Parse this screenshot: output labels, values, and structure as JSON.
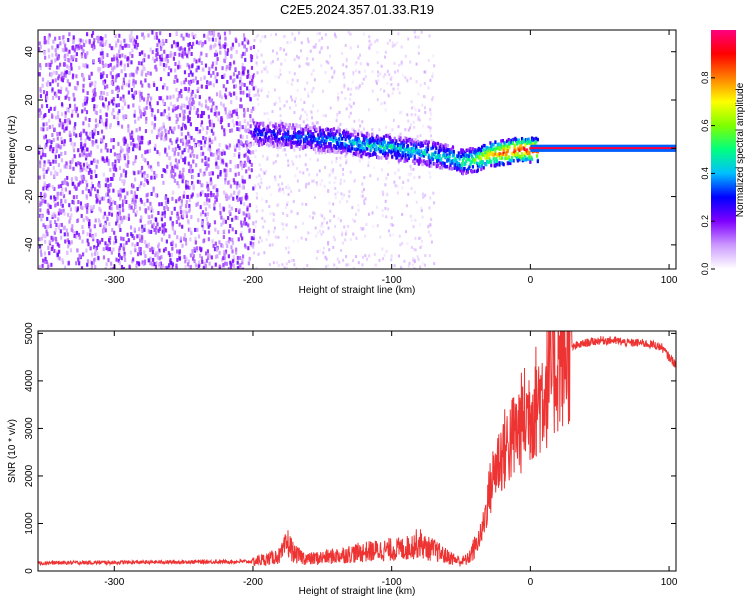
{
  "title": "C2E5.2024.357.01.33.R19",
  "chart_data": [
    {
      "type": "heatmap",
      "xlabel": "Height of straight line (km)",
      "ylabel": "Frequency (Hz)",
      "xlim": [
        -355,
        105
      ],
      "ylim": [
        -50,
        49
      ],
      "x_ticks": [
        -300,
        -200,
        -100,
        0,
        100
      ],
      "y_ticks": [
        -40,
        -20,
        0,
        20,
        40
      ],
      "grid": false,
      "colorbar": {
        "label": "Normalized spectral amplitude",
        "range": [
          0,
          1
        ],
        "ticks": [
          0.0,
          0.2,
          0.4,
          0.6,
          0.8
        ],
        "colors": [
          "#ffffff",
          "#cc99ff",
          "#7f00ff",
          "#0000ff",
          "#00bfff",
          "#00ff7f",
          "#7fff00",
          "#ffff00",
          "#ff7f00",
          "#ff0000",
          "#ff0080"
        ]
      },
      "ridge": {
        "height_km": [
          -200,
          -180,
          -160,
          -140,
          -120,
          -100,
          -80,
          -60,
          -50,
          -40,
          -30,
          -20,
          -10,
          0,
          100
        ],
        "frequency_hz": [
          7,
          6,
          5,
          4,
          2,
          1,
          -1,
          -3,
          -5,
          -4,
          -2,
          -1,
          0,
          0,
          0
        ],
        "amplitude": [
          0.3,
          0.3,
          0.35,
          0.4,
          0.45,
          0.45,
          0.45,
          0.45,
          0.5,
          0.6,
          0.75,
          0.85,
          0.9,
          0.95,
          0.95
        ]
      },
      "noise_band_km": [
        -355,
        -200
      ]
    },
    {
      "type": "line",
      "xlabel": "Height of straight line (km)",
      "ylabel": "SNR (10 * v/v)",
      "xlim": [
        -355,
        105
      ],
      "ylim": [
        0,
        5050
      ],
      "x_ticks": [
        -300,
        -200,
        -100,
        0,
        100
      ],
      "y_ticks": [
        0,
        1000,
        2000,
        3000,
        4000,
        5000
      ],
      "grid": false,
      "series": [
        {
          "color": "#ee3333",
          "x": [
            -355,
            -300,
            -250,
            -200,
            -190,
            -180,
            -175,
            -170,
            -160,
            -150,
            -140,
            -130,
            -120,
            -110,
            -100,
            -90,
            -80,
            -75,
            -70,
            -60,
            -50,
            -45,
            -40,
            -35,
            -30,
            -25,
            -20,
            -15,
            -10,
            -5,
            0,
            5,
            10,
            15,
            20,
            30,
            40,
            50,
            60,
            70,
            80,
            90,
            95,
            100,
            105
          ],
          "y": [
            170,
            180,
            190,
            200,
            250,
            330,
            600,
            350,
            250,
            280,
            320,
            360,
            400,
            430,
            450,
            470,
            600,
            480,
            450,
            300,
            200,
            250,
            500,
            800,
            1600,
            2200,
            2500,
            2700,
            2900,
            3200,
            3400,
            3600,
            3800,
            4100,
            4400,
            4700,
            4800,
            4850,
            4850,
            4800,
            4800,
            4750,
            4700,
            4500,
            4350
          ]
        }
      ]
    }
  ]
}
